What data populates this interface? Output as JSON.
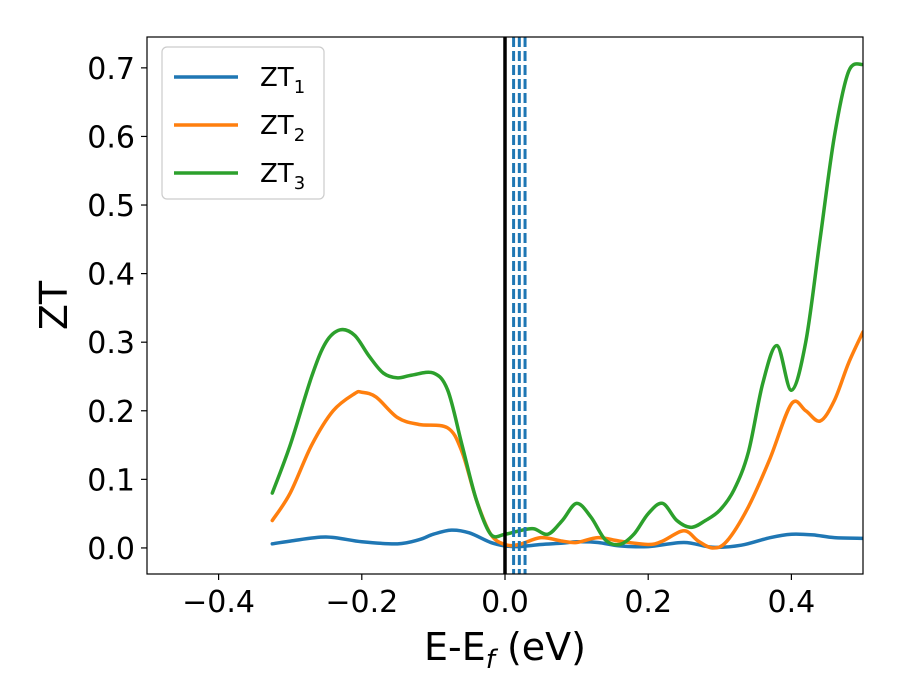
{
  "chart_data": {
    "type": "line",
    "xlabel": {
      "main": "E-E",
      "sub": "f",
      "unit": " (eV)"
    },
    "ylabel": "ZT",
    "xlim": [
      -0.5,
      0.5
    ],
    "ylim": [
      -0.038,
      0.745
    ],
    "xticks": [
      -0.4,
      -0.2,
      0.0,
      0.2,
      0.4
    ],
    "xtick_labels": [
      "−0.4",
      "−0.2",
      "0.0",
      "0.2",
      "0.4"
    ],
    "yticks": [
      0.0,
      0.1,
      0.2,
      0.3,
      0.4,
      0.5,
      0.6,
      0.7
    ],
    "ytick_labels": [
      "0.0",
      "0.1",
      "0.2",
      "0.3",
      "0.4",
      "0.5",
      "0.6",
      "0.7"
    ],
    "grid": false,
    "legend_position": "top-left",
    "reference_lines": [
      {
        "x": 0.0,
        "style": "solid",
        "color": "#000000"
      },
      {
        "x": 0.012,
        "style": "dashed",
        "color": "#1f77b4"
      },
      {
        "x": 0.02,
        "style": "dashed",
        "color": "#1f77b4"
      },
      {
        "x": 0.028,
        "style": "dashed",
        "color": "#1f77b4"
      }
    ],
    "series": [
      {
        "name": "ZT",
        "subscript": "1",
        "color": "#1f77b4",
        "x": [
          -0.325,
          -0.3,
          -0.25,
          -0.2,
          -0.15,
          -0.12,
          -0.1,
          -0.075,
          -0.05,
          -0.02,
          0.0,
          0.02,
          0.05,
          0.08,
          0.1,
          0.13,
          0.16,
          0.2,
          0.25,
          0.29,
          0.33,
          0.37,
          0.4,
          0.43,
          0.46,
          0.5
        ],
        "values": [
          0.006,
          0.01,
          0.016,
          0.009,
          0.006,
          0.012,
          0.02,
          0.026,
          0.022,
          0.008,
          0.003,
          0.002,
          0.005,
          0.007,
          0.009,
          0.008,
          0.003,
          0.002,
          0.008,
          0.001,
          0.004,
          0.015,
          0.02,
          0.019,
          0.015,
          0.014
        ]
      },
      {
        "name": "ZT",
        "subscript": "2",
        "color": "#ff7f0e",
        "x": [
          -0.325,
          -0.3,
          -0.27,
          -0.24,
          -0.21,
          -0.2,
          -0.18,
          -0.15,
          -0.12,
          -0.08,
          -0.06,
          -0.04,
          -0.02,
          0.0,
          0.02,
          0.05,
          0.08,
          0.1,
          0.13,
          0.16,
          0.2,
          0.22,
          0.25,
          0.27,
          0.29,
          0.31,
          0.34,
          0.37,
          0.4,
          0.42,
          0.44,
          0.46,
          0.48,
          0.5
        ],
        "values": [
          0.04,
          0.08,
          0.15,
          0.2,
          0.225,
          0.227,
          0.22,
          0.19,
          0.18,
          0.175,
          0.14,
          0.07,
          0.02,
          0.005,
          0.005,
          0.015,
          0.01,
          0.008,
          0.015,
          0.01,
          0.005,
          0.01,
          0.025,
          0.01,
          0.0,
          0.01,
          0.06,
          0.13,
          0.21,
          0.2,
          0.185,
          0.215,
          0.27,
          0.315
        ]
      },
      {
        "name": "ZT",
        "subscript": "3",
        "color": "#2ca02c",
        "x": [
          -0.325,
          -0.3,
          -0.27,
          -0.25,
          -0.23,
          -0.21,
          -0.19,
          -0.17,
          -0.15,
          -0.13,
          -0.1,
          -0.08,
          -0.06,
          -0.04,
          -0.02,
          0.0,
          0.02,
          0.04,
          0.06,
          0.08,
          0.1,
          0.12,
          0.14,
          0.16,
          0.18,
          0.2,
          0.22,
          0.24,
          0.26,
          0.28,
          0.3,
          0.32,
          0.34,
          0.36,
          0.38,
          0.4,
          0.42,
          0.44,
          0.46,
          0.48,
          0.5
        ],
        "values": [
          0.08,
          0.15,
          0.25,
          0.3,
          0.318,
          0.31,
          0.28,
          0.255,
          0.248,
          0.252,
          0.255,
          0.23,
          0.15,
          0.07,
          0.02,
          0.02,
          0.025,
          0.028,
          0.02,
          0.04,
          0.065,
          0.045,
          0.012,
          0.005,
          0.02,
          0.05,
          0.065,
          0.04,
          0.03,
          0.04,
          0.055,
          0.085,
          0.14,
          0.24,
          0.295,
          0.23,
          0.3,
          0.45,
          0.6,
          0.695,
          0.705
        ]
      }
    ]
  }
}
